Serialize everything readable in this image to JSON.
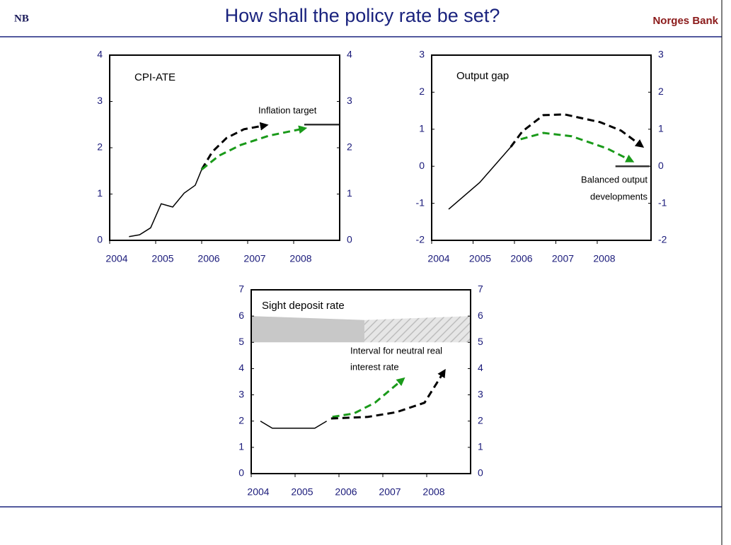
{
  "header": {
    "logo": "NB",
    "title": "How shall the policy rate be set?",
    "brand": "Norges Bank"
  },
  "chart_data": [
    {
      "type": "line",
      "title": "CPI-ATE",
      "annotation": [
        "Inflation target"
      ],
      "xlim": [
        2004,
        2009
      ],
      "xticks": [
        2004,
        2005,
        2006,
        2007,
        2008
      ],
      "ylim": [
        0,
        4
      ],
      "yticks": [
        0,
        1,
        2,
        3,
        4
      ],
      "y2lim": [
        0,
        4
      ],
      "y2ticks": [
        0,
        1,
        2,
        3,
        4
      ],
      "series": [
        {
          "color": "#000000",
          "dash": false,
          "arrow": false,
          "x": [
            2004.42,
            2004.65,
            2004.89,
            2005.12,
            2005.37,
            2005.62,
            2005.86,
            2006.0
          ],
          "values": [
            0.08,
            0.12,
            0.27,
            0.79,
            0.72,
            1.02,
            1.19,
            1.53
          ]
        },
        {
          "color": "#000000",
          "dash": true,
          "arrow": true,
          "x": [
            2006.0,
            2006.23,
            2006.54,
            2006.92,
            2007.31
          ],
          "values": [
            1.53,
            1.91,
            2.21,
            2.4,
            2.47
          ]
        },
        {
          "color": "#1a9a1a",
          "dash": true,
          "arrow": true,
          "x": [
            2006.0,
            2006.38,
            2006.85,
            2007.46,
            2008.15
          ],
          "values": [
            1.53,
            1.83,
            2.06,
            2.26,
            2.4
          ]
        },
        {
          "color": "#333333",
          "dash": false,
          "arrow": false,
          "thick": true,
          "x": [
            2008.23,
            2009.0
          ],
          "values": [
            2.5,
            2.5
          ]
        }
      ]
    },
    {
      "type": "line",
      "title": "Output gap",
      "annotation": [
        "Balanced output",
        "developments"
      ],
      "xlim": [
        2004,
        2009.3
      ],
      "xticks": [
        2004,
        2005,
        2006,
        2007,
        2008
      ],
      "ylim": [
        -2,
        3
      ],
      "yticks": [
        -2,
        -1,
        0,
        1,
        2,
        3
      ],
      "y2lim": [
        -2,
        3
      ],
      "y2ticks": [
        -2,
        -1,
        0,
        1,
        2,
        3
      ],
      "series": [
        {
          "color": "#000000",
          "dash": false,
          "arrow": false,
          "x": [
            2004.41,
            2005.16,
            2005.91
          ],
          "values": [
            -1.16,
            -0.44,
            0.52
          ]
        },
        {
          "color": "#000000",
          "dash": true,
          "arrow": true,
          "x": [
            2005.91,
            2006.19,
            2006.7,
            2007.21,
            2008.07,
            2008.58,
            2009.0
          ],
          "values": [
            0.52,
            0.94,
            1.38,
            1.4,
            1.19,
            0.96,
            0.61
          ]
        },
        {
          "color": "#1a9a1a",
          "dash": true,
          "arrow": true,
          "x": [
            2006.15,
            2006.7,
            2007.38,
            2008.24,
            2008.75
          ],
          "values": [
            0.73,
            0.9,
            0.81,
            0.48,
            0.19
          ]
        },
        {
          "color": "#333333",
          "dash": false,
          "arrow": false,
          "thick": true,
          "x": [
            2008.44,
            2009.26
          ],
          "values": [
            0,
            0
          ]
        }
      ]
    },
    {
      "type": "line",
      "title": "Sight deposit rate",
      "annotation": [
        "Interval for neutral real",
        "interest rate"
      ],
      "xlim": [
        2004,
        2009
      ],
      "xticks": [
        2004,
        2005,
        2006,
        2007,
        2008
      ],
      "ylim": [
        0,
        7
      ],
      "yticks": [
        0,
        1,
        2,
        3,
        4,
        5,
        6,
        7
      ],
      "y2lim": [
        0,
        7
      ],
      "y2ticks": [
        0,
        1,
        2,
        3,
        4,
        5,
        6,
        7
      ],
      "bands": [
        {
          "pattern": "solid",
          "color": "#c8c8c8",
          "x": [
            2004,
            2006.58
          ],
          "low": [
            5,
            5
          ],
          "high": [
            6,
            5.85
          ]
        },
        {
          "pattern": "hatch",
          "color": "#c8c8c8",
          "x": [
            2006.58,
            2009
          ],
          "low": [
            5,
            5
          ],
          "high": [
            5.85,
            6
          ]
        }
      ],
      "series": [
        {
          "color": "#000000",
          "dash": false,
          "arrow": false,
          "x": [
            2004.21,
            2004.48,
            2005.45,
            2005.72
          ],
          "values": [
            2.0,
            1.73,
            1.73,
            2.0
          ]
        },
        {
          "color": "#1a9a1a",
          "dash": true,
          "arrow": true,
          "x": [
            2005.85,
            2006.34,
            2006.82,
            2007.39
          ],
          "values": [
            2.16,
            2.29,
            2.7,
            3.5
          ]
        },
        {
          "color": "#000000",
          "dash": true,
          "arrow": true,
          "x": [
            2005.82,
            2006.66,
            2007.31,
            2007.95,
            2008.35
          ],
          "values": [
            2.1,
            2.16,
            2.34,
            2.7,
            3.77
          ]
        }
      ]
    }
  ]
}
